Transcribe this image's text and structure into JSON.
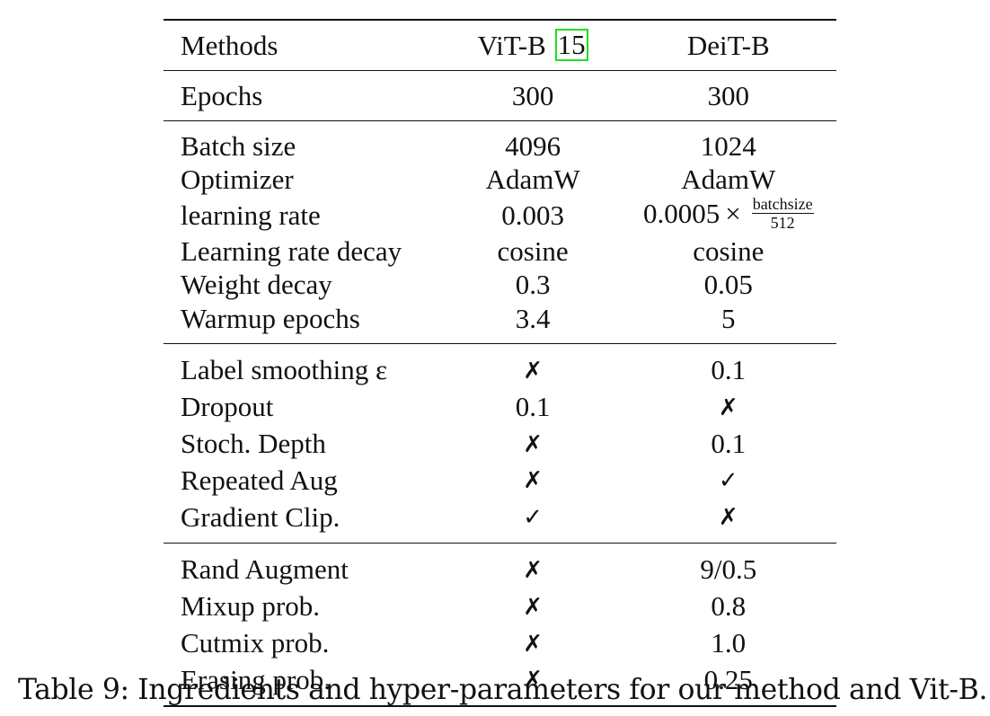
{
  "table": {
    "header": {
      "methods": "Methods",
      "vit_label": "ViT-B",
      "vit_citation": "15",
      "deit_label": "DeiT-B"
    },
    "epochs": {
      "label": "Epochs",
      "vit": "300",
      "deit": "300"
    },
    "optimization": [
      {
        "label": "Batch size",
        "vit": "4096",
        "deit": "1024"
      },
      {
        "label": "Optimizer",
        "vit": "AdamW",
        "deit": "AdamW"
      },
      {
        "label": "learning rate",
        "vit": "0.003",
        "deit_coefficient": "0.0005",
        "deit_operator": "×",
        "deit_numerator": "batchsize",
        "deit_denominator": "512"
      },
      {
        "label": "Learning rate decay",
        "vit": "cosine",
        "deit": "cosine"
      },
      {
        "label": "Weight decay",
        "vit": "0.3",
        "deit": "0.05"
      },
      {
        "label": "Warmup epochs",
        "vit": "3.4",
        "deit": "5"
      }
    ],
    "regularization": [
      {
        "label": "Label smoothing ε",
        "vit": "✗",
        "deit": "0.1"
      },
      {
        "label": "Dropout",
        "vit": "0.1",
        "deit": "✗"
      },
      {
        "label": "Stoch. Depth",
        "vit": "✗",
        "deit": "0.1"
      },
      {
        "label": "Repeated Aug",
        "vit": "✗",
        "deit": "✓"
      },
      {
        "label": "Gradient Clip.",
        "vit": "✓",
        "deit": "✗"
      }
    ],
    "augmentation": [
      {
        "label": "Rand Augment",
        "vit": "✗",
        "deit": "9/0.5"
      },
      {
        "label": "Mixup prob.",
        "vit": "✗",
        "deit": "0.8"
      },
      {
        "label": "Cutmix prob.",
        "vit": "✗",
        "deit": "1.0"
      },
      {
        "label": "Erasing prob.",
        "vit": "✗",
        "deit": "0.25"
      }
    ]
  },
  "caption": "Table 9:  Ingredients and hyper-parameters for our method and Vit-B.",
  "colors": {
    "text": "#111111",
    "citation_box": "#22dd22",
    "background": "#ffffff"
  }
}
